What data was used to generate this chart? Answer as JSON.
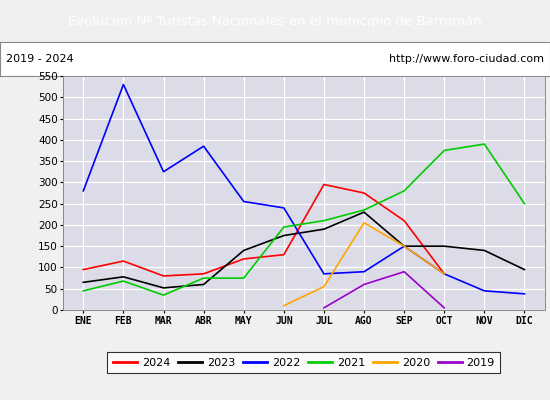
{
  "title": "Evolucion Nº Turistas Nacionales en el municipio de Barromán",
  "subtitle_left": "2019 - 2024",
  "subtitle_right": "http://www.foro-ciudad.com",
  "months": [
    "ENE",
    "FEB",
    "MAR",
    "ABR",
    "MAY",
    "JUN",
    "JUL",
    "AGO",
    "SEP",
    "OCT",
    "NOV",
    "DIC"
  ],
  "ylim": [
    0,
    550
  ],
  "yticks": [
    0,
    50,
    100,
    150,
    200,
    250,
    300,
    350,
    400,
    450,
    500,
    550
  ],
  "series": {
    "2024": {
      "color": "#ff0000",
      "values": [
        95,
        115,
        80,
        85,
        120,
        130,
        295,
        275,
        210,
        85,
        null,
        null
      ]
    },
    "2023": {
      "color": "#000000",
      "values": [
        65,
        78,
        52,
        60,
        140,
        175,
        190,
        230,
        150,
        150,
        140,
        95
      ]
    },
    "2022": {
      "color": "#0000ff",
      "values": [
        280,
        530,
        325,
        385,
        255,
        240,
        85,
        90,
        150,
        85,
        45,
        38
      ]
    },
    "2021": {
      "color": "#00cc00",
      "values": [
        45,
        68,
        35,
        75,
        75,
        195,
        210,
        235,
        280,
        375,
        390,
        250
      ]
    },
    "2020": {
      "color": "#ffa500",
      "values": [
        null,
        null,
        null,
        null,
        null,
        10,
        55,
        205,
        150,
        85,
        null,
        null
      ]
    },
    "2019": {
      "color": "#9900cc",
      "values": [
        null,
        null,
        null,
        null,
        null,
        null,
        5,
        60,
        90,
        5,
        null,
        null
      ]
    }
  },
  "title_bg_color": "#4f86c8",
  "title_font_color": "#ffffff",
  "plot_bg_color": "#dcdce8",
  "plot_bg_outer": "#f0f0f0",
  "grid_color": "#ffffff",
  "border_color": "#aaaaaa",
  "legend_order": [
    "2024",
    "2023",
    "2022",
    "2021",
    "2020",
    "2019"
  ]
}
